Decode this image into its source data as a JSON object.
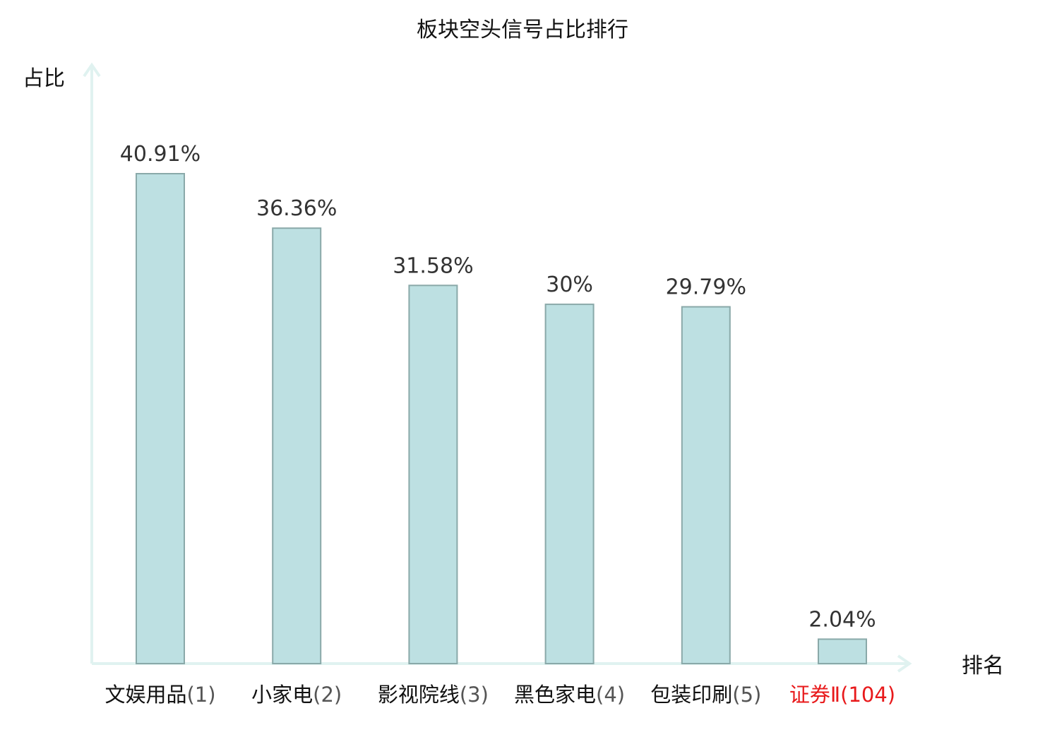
{
  "chart_data": {
    "type": "bar",
    "title": "板块空头信号占比排行",
    "ylabel": "占比",
    "xlabel": "排名",
    "categories": [
      "文娱用品",
      "小家电",
      "影视院线",
      "黑色家电",
      "包装印刷",
      "证券Ⅱ"
    ],
    "ranks": [
      "(1)",
      "(2)",
      "(3)",
      "(4)",
      "(5)",
      "(104)"
    ],
    "values": [
      40.91,
      36.36,
      31.58,
      30,
      29.79,
      2.04
    ],
    "value_labels": [
      "40.91%",
      "36.36%",
      "31.58%",
      "30%",
      "29.79%",
      "2.04%"
    ],
    "highlight_index": 5,
    "ylim": [
      0,
      50
    ],
    "grid": false,
    "legend": "none"
  },
  "colors": {
    "bar_fill": "#bde0e2",
    "bar_stroke": "#8aa9a9",
    "axis": "#e0f2f0",
    "text": "#333333",
    "highlight_text": "#e8191b",
    "normal_category_text": "#111111"
  }
}
